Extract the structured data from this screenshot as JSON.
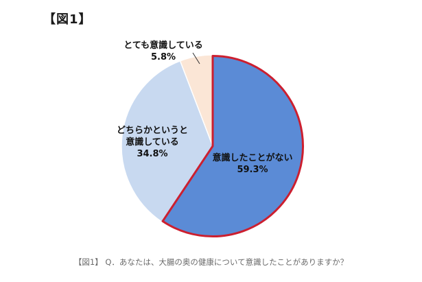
{
  "figure_label": "【図1】",
  "caption": "【図1】 Q．あなたは、大腸の奥の健康について意識したことがありますか？",
  "chart_data": {
    "type": "pie",
    "title": "",
    "slices": [
      {
        "label": "意識したことがない",
        "value": 59.3,
        "value_label": "59.3%",
        "color": "#5b8bd6",
        "highlighted": true
      },
      {
        "label": "どちらかというと 意識している",
        "value": 34.8,
        "value_label": "34.8%",
        "color": "#c8d9f0",
        "highlighted": false
      },
      {
        "label": "とても意識している",
        "value": 5.8,
        "value_label": "5.8%",
        "color": "#fbe6d6",
        "highlighted": false
      }
    ],
    "start": "12 o'clock",
    "direction": "clockwise",
    "highlight_border_color": "#cc1f2f"
  }
}
